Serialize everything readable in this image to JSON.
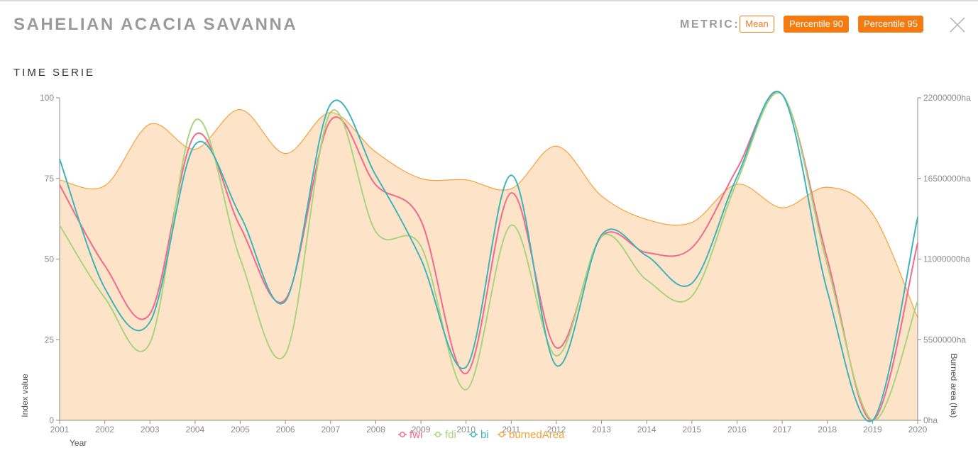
{
  "header": {
    "title": "SAHELIAN ACACIA SAVANNA",
    "metric_label": "METRIC:",
    "buttons": [
      {
        "label": "Mean",
        "selected": true
      },
      {
        "label": "Percentile 90",
        "selected": false
      },
      {
        "label": "Percentile 95",
        "selected": false
      }
    ],
    "close_icon": "close-icon"
  },
  "section_title": "TIME SERIE",
  "colors": {
    "fwi": "#f06a8b",
    "fdi": "#a8d47e",
    "bi": "#3fb3bb",
    "burnedArea": "#f5a23a",
    "burnedArea_fill": "#fde4c8",
    "button": "#f47b11"
  },
  "chart_data": {
    "type": "line",
    "x": [
      2001,
      2002,
      2003,
      2004,
      2005,
      2006,
      2007,
      2008,
      2009,
      2010,
      2011,
      2012,
      2013,
      2014,
      2015,
      2016,
      2017,
      2018,
      2019,
      2020
    ],
    "x_tick_labels": [
      "2001",
      "2002",
      "2003",
      "2004",
      "2005",
      "2006",
      "2007",
      "2008",
      "2009",
      "2010",
      "2011",
      "2012",
      "2013",
      "2014",
      "2015",
      "2016",
      "2017",
      "2018",
      "2019",
      "2020"
    ],
    "xlabel": "Year",
    "ylabel_left": "Index value",
    "ylabel_right": "Burned area (ha)",
    "ylim_left": [
      0,
      100
    ],
    "ylim_right": [
      0,
      22000000
    ],
    "left_ticks": [
      "0",
      "25",
      "50",
      "75",
      "100"
    ],
    "right_ticks": [
      "0ha",
      "5500000ha",
      "11000000ha",
      "16500000ha",
      "22000000ha"
    ],
    "series": [
      {
        "name": "fwi",
        "axis": "left",
        "values": [
          73,
          48,
          33,
          88.5,
          60,
          37.5,
          93,
          73,
          62,
          14.5,
          70.5,
          22.5,
          57,
          52,
          53.5,
          78,
          101,
          50,
          0,
          55
        ]
      },
      {
        "name": "fdi",
        "axis": "left",
        "values": [
          60.5,
          38,
          24,
          93,
          50,
          20.5,
          95.5,
          58.5,
          54,
          9.5,
          60.5,
          20,
          57,
          43.5,
          38.5,
          74,
          101,
          48,
          0,
          37
        ]
      },
      {
        "name": "bi",
        "axis": "left",
        "values": [
          81,
          41,
          30.5,
          85.5,
          63.5,
          37,
          98,
          76,
          50,
          16.5,
          76,
          17,
          57.5,
          51,
          42.5,
          75.5,
          101,
          40,
          0,
          63
        ]
      },
      {
        "name": "burnedArea",
        "axis": "right",
        "area": true,
        "values": [
          16400000,
          16000000,
          20200000,
          18500000,
          21200000,
          18200000,
          21000000,
          18300000,
          16500000,
          16400000,
          15800000,
          18700000,
          15300000,
          13700000,
          13500000,
          16100000,
          14500000,
          15900000,
          14100000,
          7000000
        ]
      }
    ],
    "legend": [
      "fwi",
      "fdi",
      "bi",
      "burnedArea"
    ],
    "legend_position": "bottom-center",
    "grid": false
  }
}
